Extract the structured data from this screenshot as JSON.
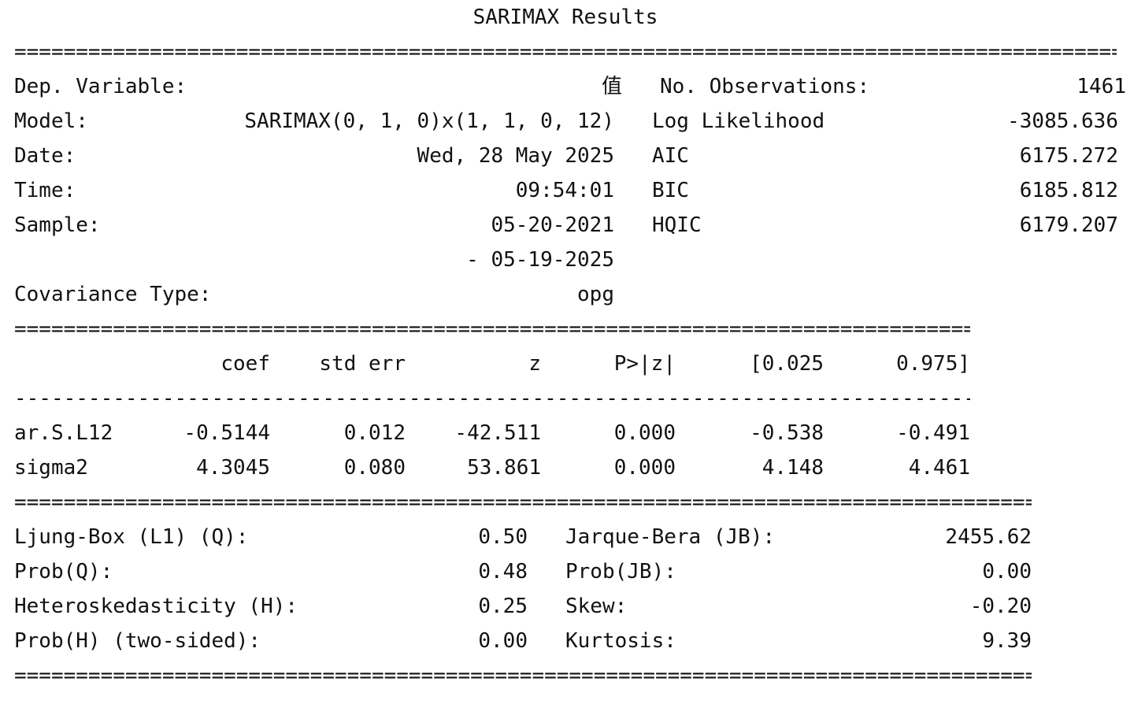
{
  "title": "SARIMAX Results",
  "header_left": [
    {
      "label": "Dep. Variable:",
      "value": "值"
    },
    {
      "label": "Model:",
      "value": "SARIMAX(0, 1, 0)x(1, 1, 0, 12)"
    },
    {
      "label": "Date:",
      "value": "Wed, 28 May 2025"
    },
    {
      "label": "Time:",
      "value": "09:54:01"
    },
    {
      "label": "Sample:",
      "value": "05-20-2021"
    },
    {
      "label": "",
      "value": "- 05-19-2025"
    },
    {
      "label": "Covariance Type:",
      "value": "opg"
    }
  ],
  "header_right": [
    {
      "label": "No. Observations:",
      "value": "1461"
    },
    {
      "label": "Log Likelihood",
      "value": "-3085.636"
    },
    {
      "label": "AIC",
      "value": "6175.272"
    },
    {
      "label": "BIC",
      "value": "6185.812"
    },
    {
      "label": "HQIC",
      "value": "6179.207"
    }
  ],
  "coef_table": {
    "columns": [
      "coef",
      "std err",
      "z",
      "P>|z|",
      "[0.025",
      "0.975]"
    ],
    "rows": [
      {
        "name": "ar.S.L12",
        "values": [
          "-0.5144",
          "0.012",
          "-42.511",
          "0.000",
          "-0.538",
          "-0.491"
        ]
      },
      {
        "name": "sigma2",
        "values": [
          "4.3045",
          "0.080",
          "53.861",
          "0.000",
          "4.148",
          "4.461"
        ]
      }
    ]
  },
  "diagnostics_left": [
    {
      "label": "Ljung-Box (L1) (Q):",
      "value": "0.50"
    },
    {
      "label": "Prob(Q):",
      "value": "0.48"
    },
    {
      "label": "Heteroskedasticity (H):",
      "value": "0.25"
    },
    {
      "label": "Prob(H) (two-sided):",
      "value": "0.00"
    }
  ],
  "diagnostics_right": [
    {
      "label": "Jarque-Bera (JB):",
      "value": "2455.62"
    },
    {
      "label": "Prob(JB):",
      "value": "0.00"
    },
    {
      "label": "Skew:",
      "value": "-0.20"
    },
    {
      "label": "Kurtosis:",
      "value": "9.39"
    }
  ]
}
